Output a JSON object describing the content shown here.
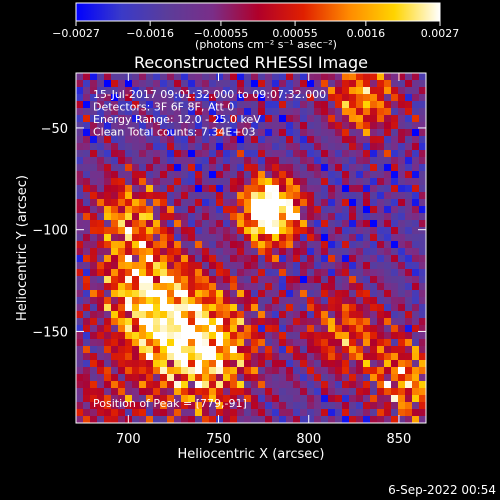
{
  "chart_data": {
    "type": "heatmap",
    "title": "Reconstructed RHESSI Image",
    "xlabel": "Heliocentric X (arcsec)",
    "ylabel": "Heliocentric Y (arcsec)",
    "xlim": [
      671,
      865
    ],
    "ylim": [
      -195,
      -23
    ],
    "x_ticks": [
      700,
      750,
      800,
      850
    ],
    "y_ticks": [
      -50,
      -100,
      -150
    ],
    "y_tick_labels": [
      "−50",
      "−100",
      "−150"
    ],
    "colorbar": {
      "range": [
        -0.0027,
        0.0027
      ],
      "ticks": [
        -0.0027,
        -0.0016,
        -0.00055,
        0.00055,
        0.0016,
        0.0027
      ],
      "tick_labels": [
        "−0.0027",
        "−0.0016",
        "−0.00055",
        "0.00055",
        "0.0016",
        "0.0027"
      ],
      "unit_label": "(photons cm⁻² s⁻¹ asec⁻²)"
    },
    "info_lines": [
      "15-Jul-2017 09:01:32.000 to 09:07:32.000",
      "Detectors: 3F 6F 8F, Att 0",
      "Energy Range: 12.0 - 25.0 keV",
      "Clean     Total counts: 7.34E+03"
    ],
    "peak_label": "Position of Peak = [779,-91]",
    "peak": {
      "x": 779,
      "y": -91,
      "value": 0.0027
    },
    "sources": [
      {
        "x": 779,
        "y": -91,
        "amplitude": 1.0,
        "sigma": 12
      },
      {
        "x": 740,
        "y": -158,
        "amplitude": 0.7,
        "sigma": 22
      },
      {
        "x": 710,
        "y": -135,
        "amplitude": 0.55,
        "sigma": 18
      },
      {
        "x": 700,
        "y": -95,
        "amplitude": 0.45,
        "sigma": 16
      },
      {
        "x": 830,
        "y": -35,
        "amplitude": 0.5,
        "sigma": 14
      },
      {
        "x": 820,
        "y": -150,
        "amplitude": 0.4,
        "sigma": 16
      },
      {
        "x": 855,
        "y": -175,
        "amplitude": 0.5,
        "sigma": 14
      },
      {
        "x": 685,
        "y": -185,
        "amplitude": 0.25,
        "sigma": 14
      }
    ],
    "colormap": [
      "#0000ff",
      "#3a3ac8",
      "#5b3d9a",
      "#7a2e88",
      "#b0002a",
      "#e02000",
      "#ff8a00",
      "#ffd400",
      "#ffffff"
    ]
  },
  "timestamp": "6-Sep-2022 00:54"
}
